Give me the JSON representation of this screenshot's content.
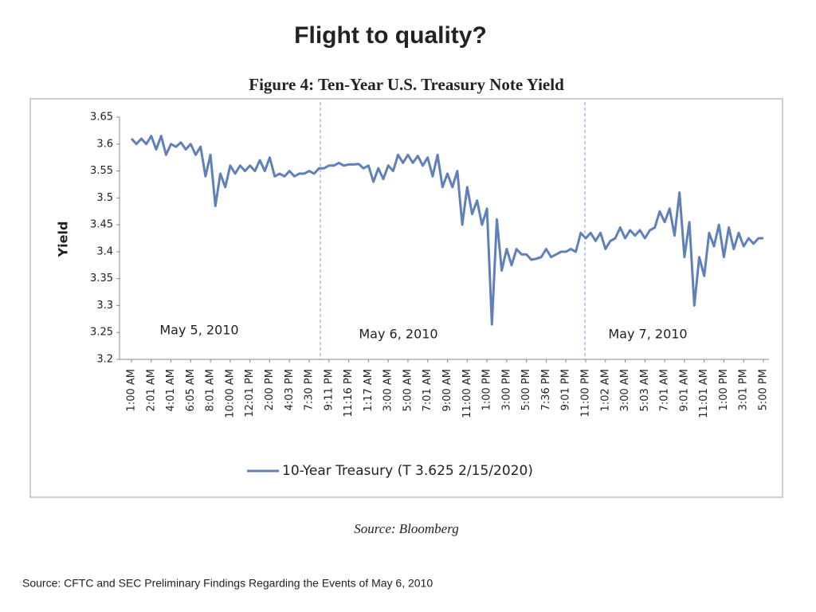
{
  "title": "Flight to quality?",
  "footnote": "Source: CFTC and SEC Preliminary Findings Regarding the Events of May 6, 2010",
  "chart_data": {
    "type": "line",
    "title": "Figure 4: Ten-Year U.S. Treasury Note Yield",
    "y_label": "Yield",
    "source": "Source: Bloomberg",
    "annotations": [
      "May 5, 2010",
      "May 6, 2010",
      "May 7, 2010"
    ],
    "ylim": [
      3.2,
      3.65
    ],
    "yticks": [
      3.2,
      3.25,
      3.3,
      3.35,
      3.4,
      3.45,
      3.5,
      3.55,
      3.6,
      3.65
    ],
    "grid": false,
    "legend": "bottom",
    "categories": [
      "1:00 AM",
      null,
      null,
      null,
      "2:01 AM",
      null,
      null,
      null,
      "4:01 AM",
      null,
      null,
      null,
      "6:05 AM",
      null,
      null,
      null,
      "8:01 AM",
      null,
      null,
      null,
      "10:00 AM",
      null,
      null,
      null,
      "12:01 PM",
      null,
      null,
      null,
      "2:00 PM",
      null,
      null,
      null,
      "4:03 PM",
      null,
      null,
      null,
      "7:30 PM",
      null,
      null,
      null,
      "9:11 PM",
      null,
      null,
      null,
      "11:16 PM",
      null,
      null,
      null,
      "1:17 AM",
      null,
      null,
      null,
      "3:00 AM",
      null,
      null,
      null,
      "5:00 AM",
      null,
      null,
      null,
      "7:01 AM",
      null,
      null,
      null,
      "9:00 AM",
      null,
      null,
      null,
      "11:00 AM",
      null,
      null,
      null,
      "1:00 PM",
      null,
      null,
      null,
      "3:00 PM",
      null,
      null,
      null,
      "5:00 PM",
      null,
      null,
      null,
      "7:36 PM",
      null,
      null,
      null,
      "9:01 PM",
      null,
      null,
      null,
      "11:00 PM",
      null,
      null,
      null,
      "1:02 AM",
      null,
      null,
      null,
      "3:00 AM",
      null,
      null,
      null,
      "5:03 AM",
      null,
      null,
      null,
      "7:01 AM",
      null,
      null,
      null,
      "9:01 AM",
      null,
      null,
      null,
      "11:01 AM",
      null,
      null,
      null,
      "1:00 PM",
      null,
      null,
      null,
      "3:01 PM",
      null,
      null,
      null,
      "5:00 PM"
    ],
    "series": [
      {
        "name": "10-Year Treasury (T 3.625 2/15/2020)",
        "color": "#5f80b8",
        "values": [
          3.61,
          3.6,
          3.61,
          3.6,
          3.615,
          3.59,
          3.615,
          3.58,
          3.6,
          3.595,
          3.603,
          3.59,
          3.6,
          3.58,
          3.595,
          3.54,
          3.58,
          3.485,
          3.545,
          3.52,
          3.56,
          3.545,
          3.56,
          3.55,
          3.56,
          3.55,
          3.57,
          3.55,
          3.575,
          3.54,
          3.545,
          3.54,
          3.55,
          3.54,
          3.545,
          3.545,
          3.55,
          3.545,
          3.555,
          3.555,
          3.56,
          3.56,
          3.565,
          3.56,
          3.562,
          3.562,
          3.563,
          3.555,
          3.56,
          3.53,
          3.555,
          3.535,
          3.56,
          3.55,
          3.58,
          3.565,
          3.58,
          3.565,
          3.578,
          3.56,
          3.575,
          3.54,
          3.58,
          3.52,
          3.545,
          3.52,
          3.55,
          3.45,
          3.52,
          3.47,
          3.495,
          3.45,
          3.48,
          3.265,
          3.46,
          3.365,
          3.405,
          3.375,
          3.405,
          3.395,
          3.395,
          3.385,
          3.387,
          3.39,
          3.405,
          3.39,
          3.395,
          3.4,
          3.4,
          3.405,
          3.4,
          3.435,
          3.425,
          3.435,
          3.42,
          3.435,
          3.405,
          3.42,
          3.425,
          3.445,
          3.425,
          3.44,
          3.43,
          3.44,
          3.425,
          3.44,
          3.445,
          3.475,
          3.455,
          3.48,
          3.43,
          3.51,
          3.39,
          3.455,
          3.3,
          3.39,
          3.355,
          3.435,
          3.41,
          3.45,
          3.39,
          3.445,
          3.405,
          3.435,
          3.41,
          3.425,
          3.415,
          3.425,
          3.425
        ]
      }
    ]
  }
}
